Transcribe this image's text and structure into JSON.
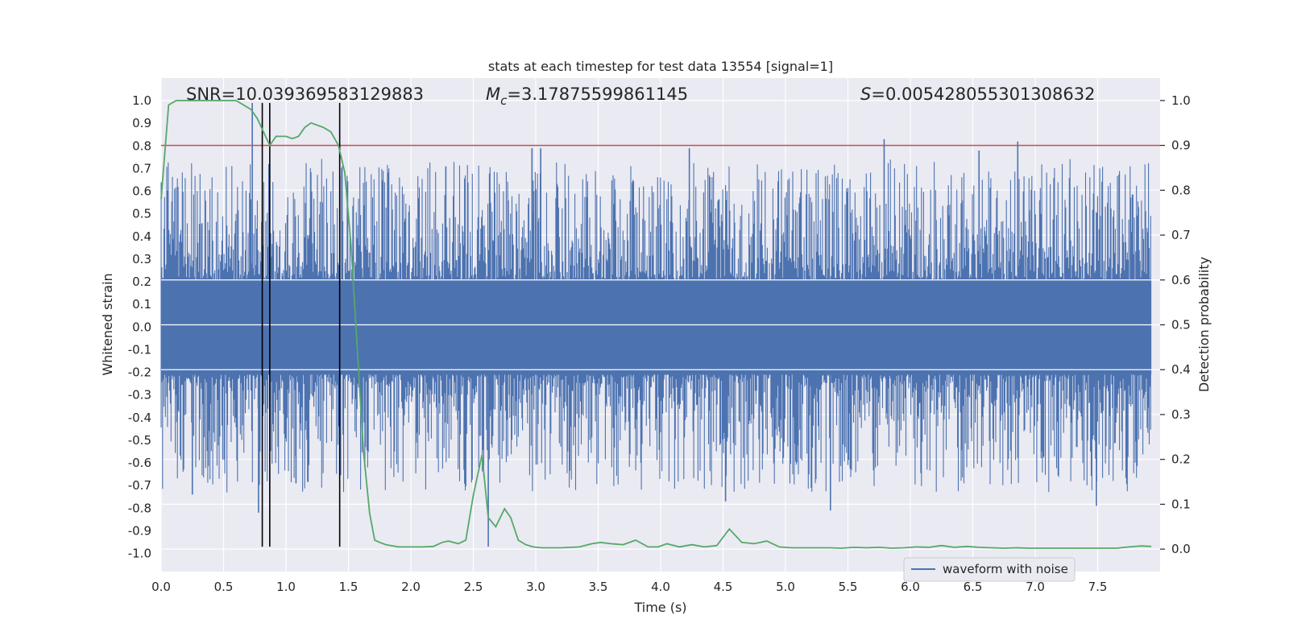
{
  "chart_data": {
    "type": "line",
    "title": "stats at each timestep for test data 13554 [signal=1]",
    "xlabel": "Time (s)",
    "ylabel": "Whitened strain",
    "ylabel_right": "Detection probability",
    "xlim": [
      0.0,
      8.0
    ],
    "ylim": [
      -1.08,
      1.1
    ],
    "ylim_right": [
      -0.05,
      1.05
    ],
    "xticks": [
      0.0,
      0.5,
      1.0,
      1.5,
      2.0,
      2.5,
      3.0,
      3.5,
      4.0,
      4.5,
      5.0,
      5.5,
      6.0,
      6.5,
      7.0,
      7.5
    ],
    "xtick_labels": [
      "0.0",
      "0.5",
      "1.0",
      "1.5",
      "2.0",
      "2.5",
      "3.0",
      "3.5",
      "4.0",
      "4.5",
      "5.0",
      "5.5",
      "6.0",
      "6.5",
      "7.0",
      "7.5"
    ],
    "yticks": [
      1.0,
      0.9,
      0.8,
      0.7,
      0.6,
      0.5,
      0.4,
      0.3,
      0.2,
      0.1,
      0.0,
      -0.1,
      -0.2,
      -0.3,
      -0.4,
      -0.5,
      -0.6,
      -0.7,
      -0.8,
      -0.9,
      -1.0
    ],
    "ytick_labels": [
      "1.0",
      "0.9",
      "0.8",
      "0.7",
      "0.6",
      "0.5",
      "0.4",
      "0.3",
      "0.2",
      "0.1",
      "0.0",
      "-0.1",
      "-0.2",
      "-0.3",
      "-0.4",
      "-0.5",
      "-0.6",
      "-0.7",
      "-0.8",
      "-0.9",
      "-1.0"
    ],
    "yticks_right": [
      1.0,
      0.9,
      0.8,
      0.7,
      0.6,
      0.5,
      0.4,
      0.3,
      0.2,
      0.1,
      0.0
    ],
    "ytick_labels_right": [
      "1.0",
      "0.9",
      "0.8",
      "0.7",
      "0.6",
      "0.5",
      "0.4",
      "0.3",
      "0.2",
      "0.1",
      "0.0"
    ],
    "annotations": {
      "snr": "SNR=10.039369583129883",
      "mc_symbol": "M",
      "mc_sub": "c",
      "mc_value": "=3.17875599861145",
      "s_symbol": "S",
      "s_value": "=0.005428055301308632"
    },
    "legend": {
      "label": "waveform with noise",
      "placement": "lower right"
    },
    "threshold_line": {
      "axis": "right",
      "value": 0.9
    },
    "vertical_lines": [
      0.81,
      0.87,
      1.43
    ],
    "series": [
      {
        "name": "waveform with noise",
        "axis": "left",
        "kind": "noise",
        "core_amplitude": 0.21,
        "sample_count": 1400,
        "peak_events": [
          {
            "x": 0.73,
            "y": 0.99
          },
          {
            "x": 0.78,
            "y": -0.82
          },
          {
            "x": 0.25,
            "y": -0.74
          },
          {
            "x": 2.62,
            "y": -0.97
          },
          {
            "x": 2.97,
            "y": 0.79
          },
          {
            "x": 3.04,
            "y": 0.79
          },
          {
            "x": 4.23,
            "y": 0.79
          },
          {
            "x": 4.52,
            "y": -0.77
          },
          {
            "x": 5.36,
            "y": -0.81
          },
          {
            "x": 5.79,
            "y": 0.83
          },
          {
            "x": 6.86,
            "y": 0.82
          },
          {
            "x": 7.49,
            "y": -0.79
          },
          {
            "x": 6.55,
            "y": 0.78
          },
          {
            "x": 2.28,
            "y": 0.71
          },
          {
            "x": 1.08,
            "y": -0.69
          }
        ]
      },
      {
        "name": "detection probability",
        "axis": "right",
        "kind": "line",
        "x": [
          0.0,
          0.06,
          0.12,
          0.2,
          0.3,
          0.4,
          0.5,
          0.6,
          0.66,
          0.72,
          0.77,
          0.82,
          0.87,
          0.92,
          0.95,
          1.0,
          1.05,
          1.1,
          1.15,
          1.2,
          1.25,
          1.3,
          1.36,
          1.42,
          1.47,
          1.52,
          1.57,
          1.62,
          1.67,
          1.71,
          1.75,
          1.8,
          1.9,
          2.0,
          2.1,
          2.18,
          2.25,
          2.3,
          2.38,
          2.44,
          2.5,
          2.57,
          2.62,
          2.68,
          2.75,
          2.8,
          2.86,
          2.92,
          2.98,
          3.05,
          3.2,
          3.35,
          3.45,
          3.52,
          3.6,
          3.7,
          3.8,
          3.9,
          3.98,
          4.05,
          4.15,
          4.25,
          4.35,
          4.45,
          4.55,
          4.65,
          4.75,
          4.85,
          4.95,
          5.05,
          5.15,
          5.25,
          5.35,
          5.45,
          5.55,
          5.65,
          5.75,
          5.85,
          5.95,
          6.05,
          6.15,
          6.25,
          6.35,
          6.45,
          6.55,
          6.65,
          6.75,
          6.85,
          6.95,
          7.05,
          7.15,
          7.25,
          7.35,
          7.45,
          7.55,
          7.65,
          7.75,
          7.85,
          7.93
        ],
        "y": [
          0.78,
          0.99,
          1.0,
          1.0,
          1.0,
          1.0,
          1.0,
          1.0,
          0.99,
          0.98,
          0.96,
          0.93,
          0.9,
          0.92,
          0.92,
          0.92,
          0.915,
          0.92,
          0.94,
          0.95,
          0.945,
          0.94,
          0.93,
          0.9,
          0.84,
          0.68,
          0.45,
          0.22,
          0.08,
          0.02,
          0.015,
          0.01,
          0.005,
          0.005,
          0.005,
          0.006,
          0.015,
          0.018,
          0.012,
          0.02,
          0.12,
          0.21,
          0.07,
          0.05,
          0.09,
          0.07,
          0.02,
          0.01,
          0.005,
          0.003,
          0.003,
          0.005,
          0.012,
          0.015,
          0.012,
          0.01,
          0.02,
          0.005,
          0.005,
          0.012,
          0.005,
          0.01,
          0.005,
          0.008,
          0.045,
          0.015,
          0.012,
          0.018,
          0.005,
          0.003,
          0.003,
          0.003,
          0.003,
          0.002,
          0.004,
          0.003,
          0.004,
          0.002,
          0.003,
          0.005,
          0.004,
          0.008,
          0.004,
          0.006,
          0.004,
          0.003,
          0.002,
          0.003,
          0.002,
          0.002,
          0.002,
          0.002,
          0.002,
          0.002,
          0.002,
          0.002,
          0.005,
          0.007,
          0.006
        ]
      }
    ],
    "colors": {
      "background": "#eaeaf2",
      "grid": "#ffffff",
      "waveform": "#4c72b0",
      "probability": "#55a868",
      "threshold": "#c44e52",
      "vline": "#000000"
    }
  }
}
